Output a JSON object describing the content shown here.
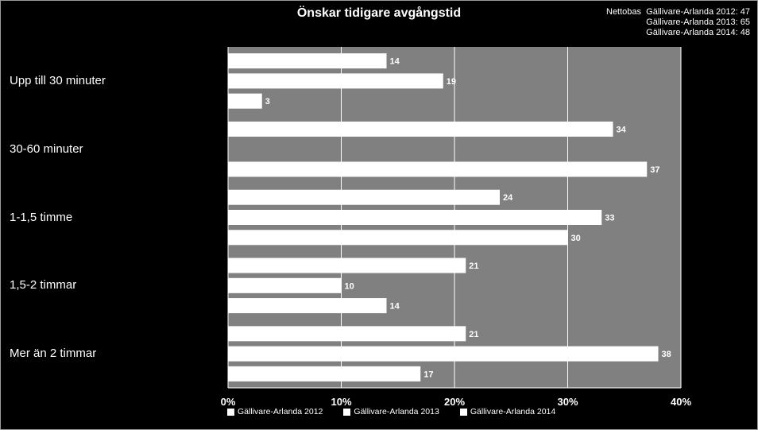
{
  "chart_data": {
    "type": "bar",
    "orientation": "horizontal",
    "title": "Önskar tidigare avgångstid",
    "base_label": "Nettobas",
    "base_lines": [
      "Gällivare-Arlanda 2012: 47",
      "Gällivare-Arlanda 2013: 65",
      "Gällivare-Arlanda 2014: 48"
    ],
    "categories": [
      "Upp till 30 minuter",
      "30-60 minuter",
      "1-1,5 timme",
      "1,5-2 timmar",
      "Mer än 2 timmar"
    ],
    "series": [
      {
        "name": "Gällivare-Arlanda 2012",
        "values": [
          14,
          34,
          24,
          21,
          21
        ]
      },
      {
        "name": "Gällivare-Arlanda 2013",
        "values": [
          19,
          null,
          33,
          10,
          38
        ]
      },
      {
        "name": "Gällivare-Arlanda 2014",
        "values": [
          3,
          37,
          30,
          14,
          17
        ]
      }
    ],
    "x_ticks": [
      "0%",
      "10%",
      "20%",
      "30%",
      "40%"
    ],
    "xlim": [
      0,
      40
    ],
    "grid": true,
    "legend_position": "bottom",
    "colors": {
      "background": "#000000",
      "plot_area": "#808080",
      "bars": "#ffffff",
      "grid": "#ffffff"
    }
  }
}
